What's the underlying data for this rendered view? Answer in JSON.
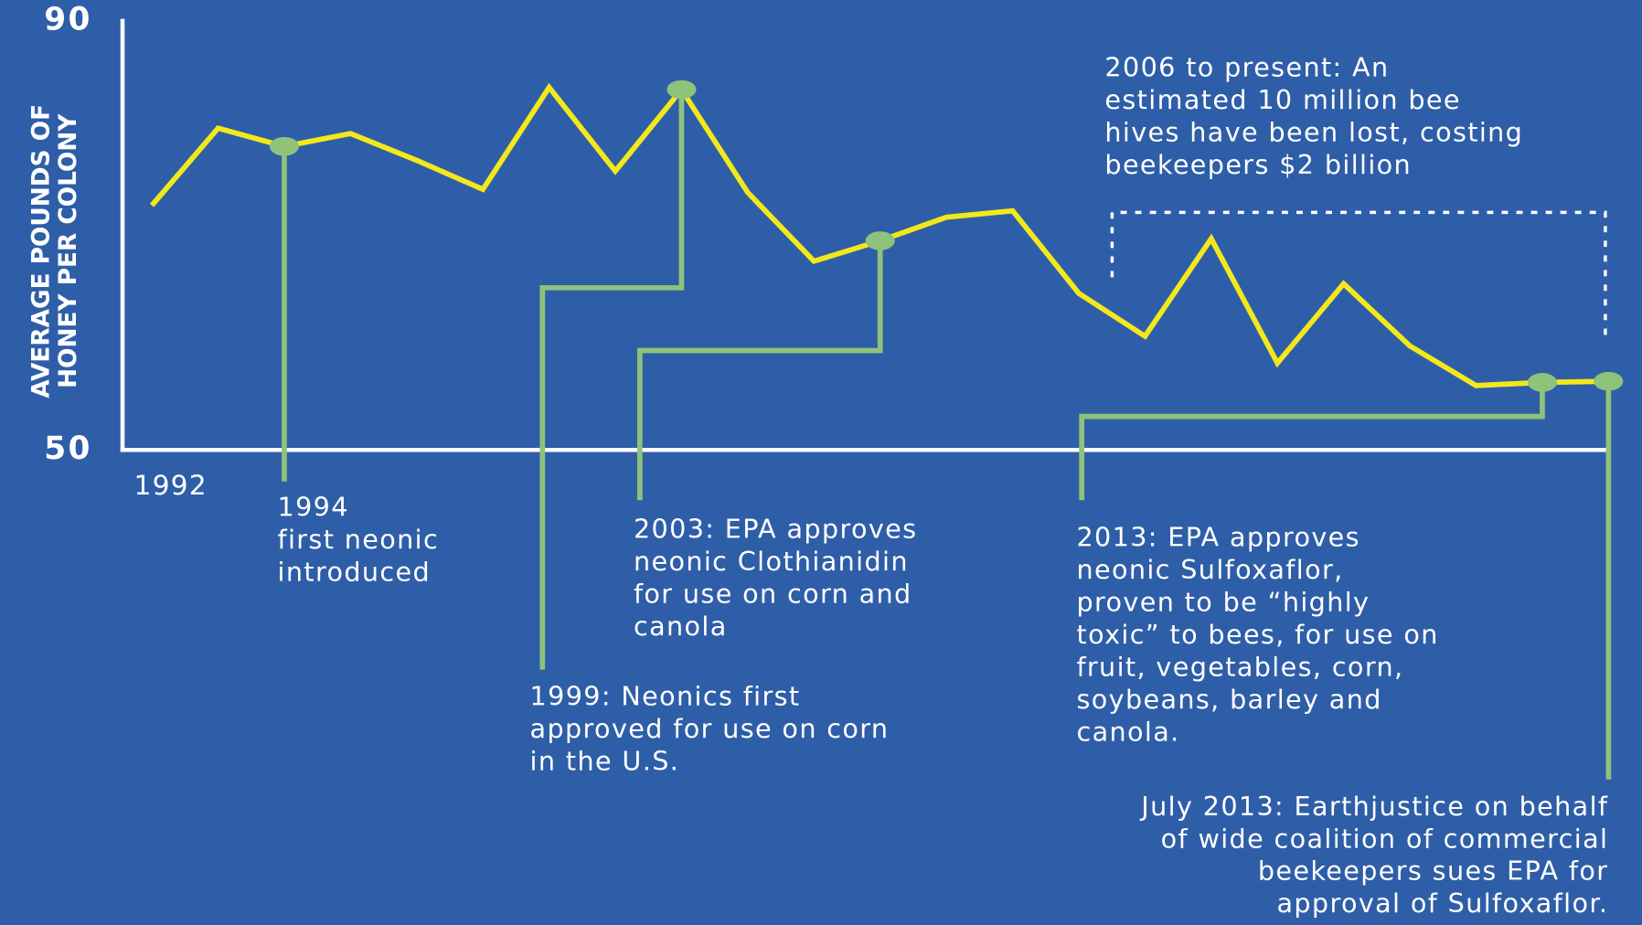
{
  "chart_data": {
    "type": "line",
    "y_label": [
      "AVERAGE POUNDS OF",
      "HONEY PER COLONY"
    ],
    "categories": [
      "1992",
      null,
      null,
      null,
      null,
      null,
      null,
      null,
      null,
      null,
      null,
      null,
      null,
      null,
      null,
      null,
      null,
      null,
      null,
      null,
      null,
      null,
      null
    ],
    "series": [
      {
        "name": "Honey per colony",
        "color": "#f3e81a",
        "values": [
          72.8,
          80.0,
          78.3,
          79.5,
          77.0,
          74.3,
          83.8,
          76.0,
          83.6,
          74.0,
          67.6,
          69.5,
          71.7,
          72.3,
          64.6,
          60.6,
          69.7,
          58.1,
          65.5,
          59.7,
          56.0,
          56.3,
          56.4
        ]
      }
    ],
    "ylim": [
      50,
      90
    ],
    "yticks": [
      50,
      90
    ],
    "marker_color": "#8fc27a",
    "annotations": [
      {
        "lines": [
          "1994",
          "first neonic",
          "introduced"
        ]
      },
      {
        "lines": [
          "1999: Neonics first",
          "approved for use on corn",
          "in the U.S."
        ]
      },
      {
        "lines": [
          "2003: EPA approves",
          "neonic Clothianidin",
          "for use on corn and",
          "canola"
        ]
      },
      {
        "lines": [
          "2013: EPA approves",
          "neonic Sulfoxaflor,",
          "proven to be “highly",
          "toxic” to bees, for use on",
          "fruit, vegetables, corn,",
          "soybeans, barley and",
          "canola."
        ]
      },
      {
        "lines": [
          "July 2013: Earthjustice on behalf",
          "of wide coalition of commercial",
          "beekeepers sues EPA for",
          "approval of Sulfoxaflor."
        ]
      },
      {
        "lines": [
          "2006 to present: An",
          "estimated 10 million bee",
          "hives have been lost, costing",
          "beekeepers $2 billion"
        ]
      }
    ]
  }
}
